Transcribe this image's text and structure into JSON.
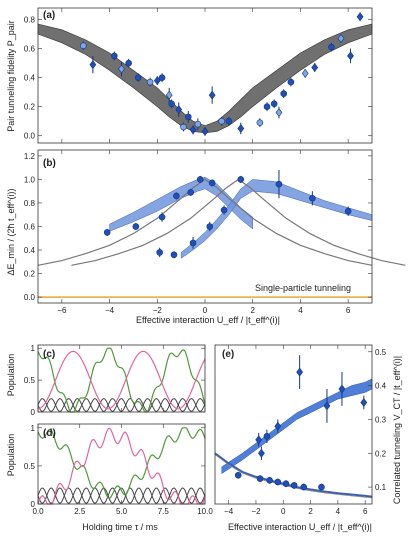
{
  "panels": {
    "a": {
      "label": "(a)",
      "ylabel": "Pair tunneling fidelity P_pair",
      "xlim": [
        -7,
        7
      ],
      "ylim": [
        -0.05,
        0.88
      ],
      "xticks": [
        -6,
        -4,
        -2,
        0,
        2,
        4,
        6
      ],
      "yticks": [
        0.0,
        0.2,
        0.4,
        0.6,
        0.8
      ],
      "band_center_color": "#6b6b6b",
      "band": {
        "x": [
          -7,
          -6,
          -5,
          -4,
          -3,
          -2,
          -1.5,
          -1,
          -0.5,
          0,
          0.5,
          1,
          1.5,
          2,
          3,
          4,
          5,
          6,
          7
        ],
        "lower": [
          0.7,
          0.64,
          0.56,
          0.45,
          0.33,
          0.2,
          0.13,
          0.07,
          0.03,
          0.02,
          0.03,
          0.07,
          0.13,
          0.2,
          0.33,
          0.45,
          0.56,
          0.64,
          0.7
        ],
        "upper": [
          0.77,
          0.73,
          0.66,
          0.57,
          0.45,
          0.33,
          0.25,
          0.17,
          0.1,
          0.07,
          0.1,
          0.17,
          0.25,
          0.33,
          0.45,
          0.57,
          0.66,
          0.73,
          0.77
        ]
      },
      "points": [
        {
          "x": -5.1,
          "y": 0.62,
          "err": 0.03,
          "shape": "circle"
        },
        {
          "x": -4.7,
          "y": 0.49,
          "err": 0.06,
          "shape": "diamond"
        },
        {
          "x": -3.8,
          "y": 0.55,
          "err": 0.03,
          "shape": "circle"
        },
        {
          "x": -3.5,
          "y": 0.46,
          "err": 0.05,
          "shape": "diamond"
        },
        {
          "x": -3.2,
          "y": 0.5,
          "err": 0.03,
          "shape": "circle"
        },
        {
          "x": -2.8,
          "y": 0.4,
          "err": 0.03,
          "shape": "circle"
        },
        {
          "x": -2.3,
          "y": 0.37,
          "err": 0.03,
          "shape": "circle"
        },
        {
          "x": -2.0,
          "y": 0.38,
          "err": 0.03,
          "shape": "diamond"
        },
        {
          "x": -1.8,
          "y": 0.4,
          "err": 0.03,
          "shape": "circle"
        },
        {
          "x": -1.5,
          "y": 0.28,
          "err": 0.05,
          "shape": "diamond"
        },
        {
          "x": -1.4,
          "y": 0.22,
          "err": 0.03,
          "shape": "circle"
        },
        {
          "x": -1.1,
          "y": 0.18,
          "err": 0.05,
          "shape": "diamond"
        },
        {
          "x": -0.9,
          "y": 0.06,
          "err": 0.03,
          "shape": "circle"
        },
        {
          "x": -0.7,
          "y": 0.13,
          "err": 0.04,
          "shape": "circle"
        },
        {
          "x": -0.5,
          "y": 0.04,
          "err": 0.03,
          "shape": "diamond"
        },
        {
          "x": -0.3,
          "y": 0.08,
          "err": 0.04,
          "shape": "circle"
        },
        {
          "x": 0.0,
          "y": 0.03,
          "err": 0.03,
          "shape": "diamond"
        },
        {
          "x": 0.3,
          "y": 0.28,
          "err": 0.06,
          "shape": "diamond"
        },
        {
          "x": 0.7,
          "y": 0.1,
          "err": 0.03,
          "shape": "circle"
        },
        {
          "x": 1.0,
          "y": 0.1,
          "err": 0.03,
          "shape": "circle"
        },
        {
          "x": 1.5,
          "y": 0.05,
          "err": 0.04,
          "shape": "diamond"
        },
        {
          "x": 2.3,
          "y": 0.09,
          "err": 0.03,
          "shape": "circle"
        },
        {
          "x": 2.6,
          "y": 0.2,
          "err": 0.03,
          "shape": "circle"
        },
        {
          "x": 2.9,
          "y": 0.22,
          "err": 0.03,
          "shape": "circle"
        },
        {
          "x": 3.1,
          "y": 0.16,
          "err": 0.04,
          "shape": "diamond"
        },
        {
          "x": 3.3,
          "y": 0.29,
          "err": 0.03,
          "shape": "circle"
        },
        {
          "x": 3.6,
          "y": 0.37,
          "err": 0.03,
          "shape": "circle"
        },
        {
          "x": 4.2,
          "y": 0.43,
          "err": 0.03,
          "shape": "diamond"
        },
        {
          "x": 4.6,
          "y": 0.47,
          "err": 0.03,
          "shape": "diamond"
        },
        {
          "x": 5.3,
          "y": 0.61,
          "err": 0.03,
          "shape": "circle"
        },
        {
          "x": 5.7,
          "y": 0.67,
          "err": 0.03,
          "shape": "diamond"
        },
        {
          "x": 6.1,
          "y": 0.55,
          "err": 0.05,
          "shape": "diamond"
        },
        {
          "x": 6.5,
          "y": 0.82,
          "err": 0.03,
          "shape": "diamond"
        }
      ]
    },
    "b": {
      "label": "(b)",
      "xlabel": "Effective interaction U_eff / |t_eff^(i)|",
      "ylabel": "ΔE_min / (2ħ t_eff^(i))",
      "xlim": [
        -7,
        7
      ],
      "ylim": [
        -0.05,
        1.25
      ],
      "xticks": [
        -6,
        -4,
        -2,
        0,
        2,
        4,
        6
      ],
      "yticks": [
        0.0,
        0.2,
        0.4,
        0.6,
        0.8,
        1.0,
        1.2
      ],
      "annotation": "Single-particle tunneling",
      "single_line_y": 0.0,
      "single_line_color": "#e8a33c",
      "band_color": "#6f95dd",
      "gray_curves": {
        "x": [
          -7,
          -6,
          -5,
          -4,
          -3,
          -2,
          -1,
          -0.5,
          0,
          0.5,
          1,
          2,
          3,
          4,
          5,
          6,
          7
        ],
        "left": [
          0.27,
          0.31,
          0.37,
          0.44,
          0.54,
          0.67,
          0.84,
          0.93,
          1.0,
          0.93,
          0.84,
          0.67,
          0.54,
          0.44,
          0.37,
          0.31,
          0.27
        ],
        "right_shift": 1.4
      },
      "bands": [
        {
          "x": [
            -4,
            -3,
            -2,
            -1,
            -0.3,
            0,
            0.5,
            1,
            1.5,
            2
          ],
          "lower": [
            0.56,
            0.64,
            0.73,
            0.84,
            0.9,
            0.92,
            0.86,
            0.76,
            0.66,
            0.58
          ],
          "upper": [
            0.62,
            0.72,
            0.83,
            0.94,
            1.0,
            1.02,
            0.96,
            0.86,
            0.76,
            0.68
          ]
        },
        {
          "x": [
            -1,
            -0.5,
            0,
            0.5,
            1,
            1.5,
            2,
            3,
            4,
            5,
            6,
            7
          ],
          "lower": [
            0.33,
            0.4,
            0.48,
            0.58,
            0.7,
            0.84,
            0.9,
            0.88,
            0.82,
            0.76,
            0.7,
            0.65
          ],
          "upper": [
            0.38,
            0.46,
            0.55,
            0.66,
            0.78,
            0.92,
            1.0,
            0.98,
            0.9,
            0.82,
            0.76,
            0.7
          ]
        }
      ],
      "points": [
        {
          "x": -4.1,
          "y": 0.55,
          "err": 0.03
        },
        {
          "x": -2.9,
          "y": 0.6,
          "err": 0.03
        },
        {
          "x": -1.8,
          "y": 0.68,
          "err": 0.04
        },
        {
          "x": -1.2,
          "y": 0.86,
          "err": 0.03
        },
        {
          "x": -0.6,
          "y": 0.89,
          "err": 0.03
        },
        {
          "x": -0.2,
          "y": 1.0,
          "err": 0.03
        },
        {
          "x": 0.3,
          "y": 0.97,
          "err": 0.03
        },
        {
          "x": -1.9,
          "y": 0.38,
          "err": 0.04
        },
        {
          "x": -1.3,
          "y": 0.36,
          "err": 0.03
        },
        {
          "x": -0.5,
          "y": 0.46,
          "err": 0.05
        },
        {
          "x": 0.2,
          "y": 0.6,
          "err": 0.04
        },
        {
          "x": 0.8,
          "y": 0.74,
          "err": 0.04
        },
        {
          "x": 1.5,
          "y": 1.0,
          "err": 0.03
        },
        {
          "x": 3.1,
          "y": 0.96,
          "err": 0.12
        },
        {
          "x": 4.5,
          "y": 0.84,
          "err": 0.06
        },
        {
          "x": 6.0,
          "y": 0.73,
          "err": 0.04
        }
      ]
    },
    "c": {
      "label": "(c)",
      "ylabel": "Population",
      "xlim": [
        0,
        10
      ],
      "ylim": [
        0,
        1.05
      ],
      "xticks": [
        0.0,
        2.5,
        5.0,
        7.5,
        10.0
      ],
      "yticks": [
        0,
        0.5,
        1
      ],
      "colors": {
        "pink": "#e066a0",
        "green": "#4e9a3a",
        "dark": "#444444"
      }
    },
    "d": {
      "label": "(d)",
      "xlabel": "Holding time τ / ms",
      "ylabel": "Population",
      "xlim": [
        0,
        10
      ],
      "ylim": [
        0,
        1.05
      ],
      "xticks": [
        0.0,
        2.5,
        5.0,
        7.5,
        10.0
      ],
      "xticklabels": [
        "0.0",
        "2.5",
        "5.0",
        "7.5",
        "10.0"
      ],
      "yticks": [
        0,
        0.5,
        1
      ]
    },
    "e": {
      "label": "(e)",
      "xlabel": "Effective interaction U_eff / |t_eff^(i)|",
      "ylabel": "Correlated tunneling V_CT / |t_eff^(i)|",
      "xlim": [
        -5,
        6.5
      ],
      "ylim": [
        0.05,
        0.52
      ],
      "xticks": [
        -4,
        -2,
        0,
        2,
        4,
        6
      ],
      "yticks": [
        0.1,
        0.2,
        0.3,
        0.4,
        0.5
      ],
      "upper_band": {
        "x": [
          -4.5,
          -3,
          -2,
          -1,
          0,
          1,
          2,
          3,
          4,
          5,
          6,
          6.5
        ],
        "lower": [
          0.14,
          0.18,
          0.21,
          0.24,
          0.27,
          0.3,
          0.32,
          0.34,
          0.36,
          0.37,
          0.38,
          0.39
        ],
        "upper": [
          0.16,
          0.2,
          0.23,
          0.26,
          0.29,
          0.32,
          0.34,
          0.36,
          0.38,
          0.4,
          0.41,
          0.42
        ]
      },
      "lower_curve": {
        "x": [
          -5,
          -4,
          -3,
          -2,
          -1,
          0,
          1,
          2,
          3,
          4,
          5,
          6,
          6.5
        ],
        "y": [
          0.2,
          0.17,
          0.145,
          0.13,
          0.12,
          0.11,
          0.1,
          0.093,
          0.087,
          0.082,
          0.078,
          0.074,
          0.072
        ]
      },
      "points_upper": [
        {
          "x": -1.8,
          "y": 0.24,
          "err": 0.02,
          "shape": "diamond"
        },
        {
          "x": -1.2,
          "y": 0.25,
          "err": 0.02,
          "shape": "circle"
        },
        {
          "x": -0.4,
          "y": 0.28,
          "err": 0.02,
          "shape": "diamond"
        },
        {
          "x": 1.2,
          "y": 0.44,
          "err": 0.05,
          "shape": "diamond"
        },
        {
          "x": 3.2,
          "y": 0.34,
          "err": 0.05,
          "shape": "diamond"
        },
        {
          "x": 4.3,
          "y": 0.39,
          "err": 0.05,
          "shape": "diamond"
        },
        {
          "x": 5.9,
          "y": 0.35,
          "err": 0.02,
          "shape": "diamond"
        },
        {
          "x": -1.6,
          "y": 0.2,
          "err": 0.02,
          "shape": "diamond"
        }
      ],
      "points_lower": [
        {
          "x": -3.3,
          "y": 0.135,
          "err": 0.01
        },
        {
          "x": -1.7,
          "y": 0.125,
          "err": 0.01
        },
        {
          "x": -1.0,
          "y": 0.12,
          "err": 0.01
        },
        {
          "x": -0.4,
          "y": 0.115,
          "err": 0.01
        },
        {
          "x": 0.2,
          "y": 0.11,
          "err": 0.01
        },
        {
          "x": 0.8,
          "y": 0.105,
          "err": 0.01
        },
        {
          "x": 1.5,
          "y": 0.1,
          "err": 0.01
        },
        {
          "x": 2.8,
          "y": 0.1,
          "err": 0.01
        }
      ]
    }
  },
  "chart_data": [
    {
      "type": "scatter",
      "title": "(a)",
      "ylabel": "Pair tunneling fidelity P_pair",
      "xlim": [
        -7,
        7
      ],
      "ylim": [
        -0.05,
        0.88
      ]
    },
    {
      "type": "scatter",
      "title": "(b)",
      "xlabel": "Effective interaction U_eff / |t_eff^(i)|",
      "ylabel": "ΔE_min / (2ħ t_eff^(i))",
      "xlim": [
        -7,
        7
      ],
      "ylim": [
        -0.05,
        1.25
      ]
    },
    {
      "type": "line",
      "title": "(c)",
      "ylabel": "Population",
      "xlim": [
        0,
        10
      ],
      "ylim": [
        0,
        1.05
      ]
    },
    {
      "type": "line",
      "title": "(d)",
      "xlabel": "Holding time τ / ms",
      "ylabel": "Population",
      "xlim": [
        0,
        10
      ],
      "ylim": [
        0,
        1.05
      ]
    },
    {
      "type": "scatter",
      "title": "(e)",
      "xlabel": "Effective interaction U_eff / |t_eff^(i)|",
      "ylabel": "Correlated tunneling V_CT / |t_eff^(i)|",
      "xlim": [
        -5,
        6.5
      ],
      "ylim": [
        0.05,
        0.52
      ]
    }
  ],
  "colors": {
    "marker_dark": "#1f4fb8",
    "marker_light": "#7ea5e6",
    "marker_edge": "#15367f",
    "gray_band": "#707070"
  }
}
